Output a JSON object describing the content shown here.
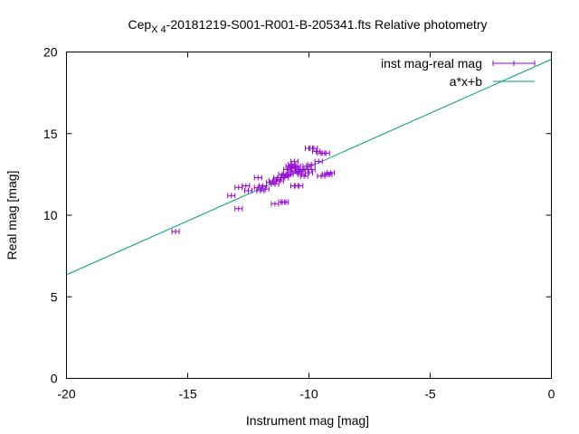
{
  "chart_data": {
    "type": "scatter",
    "title": {
      "prefix": "Cep",
      "subscript": "X 4",
      "suffix": "-20181219-S001-R001-B-205341.fts Relative photometry"
    },
    "xlabel": "Instrument mag [mag]",
    "ylabel": "Real mag [mag]",
    "xlim": [
      -20,
      0
    ],
    "ylim": [
      0,
      20
    ],
    "xticks": [
      -20,
      -15,
      -10,
      -5,
      0
    ],
    "yticks": [
      0,
      5,
      10,
      15,
      20
    ],
    "grid": false,
    "legend_position": "top-right",
    "series": [
      {
        "name": "inst mag-real mag",
        "kind": "points-with-x-errorbars",
        "color": "#9400d3",
        "xerr": 0.15,
        "points": [
          [
            -15.5,
            9.0
          ],
          [
            -13.2,
            11.2
          ],
          [
            -12.9,
            11.7
          ],
          [
            -12.9,
            10.4
          ],
          [
            -12.6,
            11.8
          ],
          [
            -12.5,
            11.5
          ],
          [
            -12.1,
            12.3
          ],
          [
            -12.1,
            11.7
          ],
          [
            -12.0,
            11.5
          ],
          [
            -11.9,
            11.8
          ],
          [
            -11.8,
            11.6
          ],
          [
            -11.6,
            12.0
          ],
          [
            -11.5,
            12.1
          ],
          [
            -11.4,
            11.9
          ],
          [
            -11.3,
            12.3
          ],
          [
            -11.3,
            12.2
          ],
          [
            -11.2,
            12.1
          ],
          [
            -11.1,
            12.5
          ],
          [
            -11.0,
            12.4
          ],
          [
            -11.0,
            12.3
          ],
          [
            -10.9,
            12.8
          ],
          [
            -10.9,
            12.5
          ],
          [
            -10.8,
            12.5
          ],
          [
            -10.8,
            13.0
          ],
          [
            -10.7,
            13.1
          ],
          [
            -10.7,
            12.9
          ],
          [
            -10.7,
            12.7
          ],
          [
            -10.6,
            13.3
          ],
          [
            -10.6,
            12.9
          ],
          [
            -10.5,
            13.0
          ],
          [
            -10.5,
            12.6
          ],
          [
            -10.4,
            12.7
          ],
          [
            -10.4,
            12.8
          ],
          [
            -10.3,
            12.5
          ],
          [
            -10.2,
            12.8
          ],
          [
            -10.1,
            13.0
          ],
          [
            -10.0,
            12.6
          ],
          [
            -9.9,
            12.8
          ],
          [
            -9.9,
            13.1
          ],
          [
            -9.8,
            14.1
          ],
          [
            -9.7,
            13.9
          ],
          [
            -9.6,
            13.3
          ],
          [
            -9.5,
            13.8
          ],
          [
            -9.5,
            12.4
          ],
          [
            -9.3,
            13.8
          ],
          [
            -9.3,
            12.5
          ],
          [
            -9.2,
            12.5
          ],
          [
            -9.1,
            12.6
          ],
          [
            -10.4,
            11.8
          ],
          [
            -10.6,
            11.8
          ],
          [
            -11.4,
            10.7
          ],
          [
            -11.0,
            10.8
          ],
          [
            -11.1,
            10.8
          ],
          [
            -10.0,
            14.1
          ],
          [
            -10.2,
            12.4
          ]
        ]
      },
      {
        "name": "a*x+b",
        "kind": "line",
        "color": "#009e73",
        "slope": 0.66,
        "intercept": 19.55
      }
    ]
  }
}
